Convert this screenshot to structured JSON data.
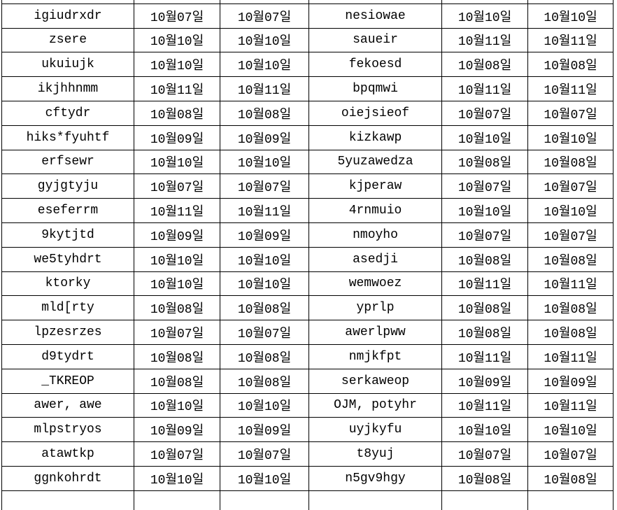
{
  "table": {
    "column_names": [
      "name-col-a",
      "date-col-a1",
      "date-col-a2",
      "name-col-b",
      "date-col-b1",
      "date-col-b2"
    ],
    "rows": [
      [
        "igiudrxdr",
        "10월07일",
        "10월07일",
        "nesiowae",
        "10월10일",
        "10월10일"
      ],
      [
        "zsere",
        "10월10일",
        "10월10일",
        "saueir",
        "10월11일",
        "10월11일"
      ],
      [
        "ukuiujk",
        "10월10일",
        "10월10일",
        "fekoesd",
        "10월08일",
        "10월08일"
      ],
      [
        "ikjhhnmm",
        "10월11일",
        "10월11일",
        "bpqmwi",
        "10월11일",
        "10월11일"
      ],
      [
        "cftydr",
        "10월08일",
        "10월08일",
        "oiejsieof",
        "10월07일",
        "10월07일"
      ],
      [
        "hiks*fyuhtf",
        "10월09일",
        "10월09일",
        "kizkawp",
        "10월10일",
        "10월10일"
      ],
      [
        "erfsewr",
        "10월10일",
        "10월10일",
        "5yuzawedza",
        "10월08일",
        "10월08일"
      ],
      [
        "gyjgtyju",
        "10월07일",
        "10월07일",
        "kjperaw",
        "10월07일",
        "10월07일"
      ],
      [
        "eseferrm",
        "10월11일",
        "10월11일",
        "4rnmuio",
        "10월10일",
        "10월10일"
      ],
      [
        "9kytjtd",
        "10월09일",
        "10월09일",
        "nmoyho",
        "10월07일",
        "10월07일"
      ],
      [
        "we5tyhdrt",
        "10월10일",
        "10월10일",
        "asedji",
        "10월08일",
        "10월08일"
      ],
      [
        "ktorky",
        "10월10일",
        "10월10일",
        "wemwoez",
        "10월11일",
        "10월11일"
      ],
      [
        "mld[rty",
        "10월08일",
        "10월08일",
        "yprlp",
        "10월08일",
        "10월08일"
      ],
      [
        "lpzesrzes",
        "10월07일",
        "10월07일",
        "awerlpww",
        "10월08일",
        "10월08일"
      ],
      [
        "d9tydrt",
        "10월08일",
        "10월08일",
        "nmjkfpt",
        "10월11일",
        "10월11일"
      ],
      [
        "_TKREOP",
        "10월08일",
        "10월08일",
        "serkaweop",
        "10월09일",
        "10월09일"
      ],
      [
        "awer, awe",
        "10월10일",
        "10월10일",
        "OJM, potyhr",
        "10월11일",
        "10월11일"
      ],
      [
        "mlpstryos",
        "10월09일",
        "10월09일",
        "uyjkyfu",
        "10월10일",
        "10월10일"
      ],
      [
        "atawtkp",
        "10월07일",
        "10월07일",
        "t8yuj",
        "10월07일",
        "10월07일"
      ],
      [
        "ggnkohrdt",
        "10월10일",
        "10월10일",
        "n5gv9hgy",
        "10월08일",
        "10월08일"
      ]
    ]
  },
  "colors": {
    "grid_line": "#000000",
    "text": "#000000",
    "background": "#ffffff"
  }
}
